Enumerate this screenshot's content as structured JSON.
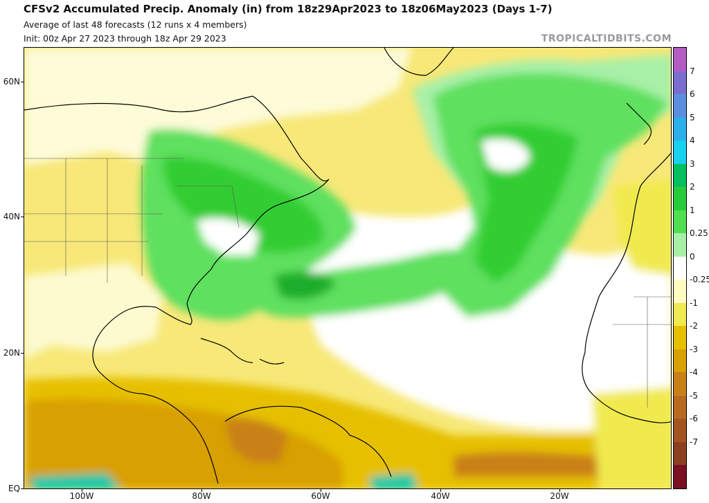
{
  "header": {
    "title": "CFSv2 Accumulated Precip. Anomaly (in) from 18z29Apr2023 to 18z06May2023 (Days 1-7)",
    "subtitle_1": "Average of last 48 forecasts (12 runs x 4 members)",
    "subtitle_2": "Init: 00z Apr 27 2023 through 18z Apr 29 2023",
    "brand": "TROPICALTIDBITS.COM"
  },
  "axes": {
    "lat_labels": [
      "60N",
      "40N",
      "20N",
      "EQ"
    ],
    "lon_labels": [
      "100W",
      "80W",
      "60W",
      "40W",
      "20W"
    ]
  },
  "colorbar": {
    "labels": [
      "7",
      "6",
      "5",
      "4",
      "3",
      "2",
      "1",
      "0.25",
      "0",
      "-0.25",
      "-1",
      "-2",
      "-3",
      "-4",
      "-5",
      "-6",
      "-7"
    ],
    "colors": [
      "#b45cc4",
      "#7a6fd0",
      "#5a8fe0",
      "#2ab0ea",
      "#18d0f0",
      "#00c060",
      "#28cc3a",
      "#4ee04e",
      "#a8f0a8",
      "#ffffff",
      "#fefcc0",
      "#f0ea50",
      "#e6c000",
      "#d8a000",
      "#c98018",
      "#b86a1e",
      "#a45420",
      "#8c4020",
      "#7a1020"
    ]
  },
  "colors": {
    "wet": "#32cd32",
    "dry": "#e8c21a",
    "neutral": "#ffffff"
  }
}
